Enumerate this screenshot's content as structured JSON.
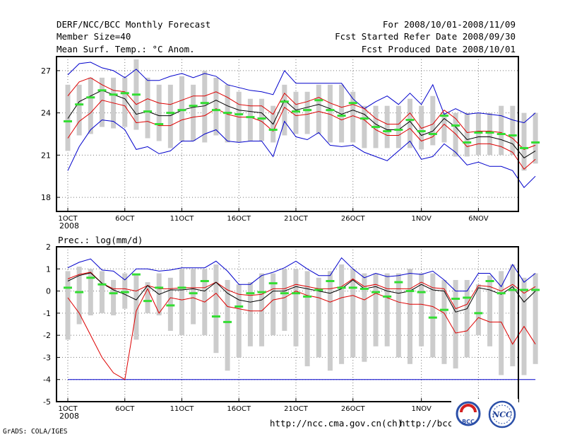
{
  "header": {
    "title": "DERF/NCC/BCC Monthly Forecast",
    "member_size": "Member Size=40",
    "period": "For 2008/10/01-2008/11/09",
    "start_date": "Fcst Started Refer Date 2008/09/30",
    "produced_date": "Fcst Produced Date 2008/10/01"
  },
  "footer": {
    "grads": "GrADS: COLA/IGES",
    "url1": "http://ncc.cma.gov.cn(ch)",
    "url2": "http://bcc.",
    "logo_left_text": "BCC",
    "logo_right_text": "NCC"
  },
  "colors": {
    "box": "#cccccc",
    "member_median": "#33dd33",
    "mean": "#000000",
    "inner": "#dd0000",
    "outer": "#0000cc"
  },
  "chart_data": [
    {
      "type": "box-range",
      "title": "Mean Surf. Temp.: °C Anom.",
      "ylim": [
        17,
        28
      ],
      "yticks": [
        18,
        21,
        24,
        27
      ],
      "xlim": [
        1,
        41
      ],
      "xticks": [
        {
          "x": 1,
          "label": "1OCT"
        },
        {
          "x": 6,
          "label": "6OCT"
        },
        {
          "x": 11,
          "label": "11OCT"
        },
        {
          "x": 16,
          "label": "16OCT"
        },
        {
          "x": 21,
          "label": "21OCT"
        },
        {
          "x": 26,
          "label": "26OCT"
        },
        {
          "x": 32,
          "label": "1NOV"
        },
        {
          "x": 37,
          "label": "6NOV"
        }
      ],
      "year_label": "2008",
      "grid": true,
      "series": [
        {
          "name": "mean",
          "values": [
            23.6,
            24.8,
            25.2,
            25.6,
            25.3,
            25.0,
            23.9,
            24.1,
            23.8,
            23.8,
            24.2,
            24.4,
            24.5,
            24.9,
            24.5,
            24.2,
            24.1,
            24.0,
            23.2,
            24.9,
            24.2,
            24.4,
            24.6,
            24.3,
            23.9,
            24.2,
            23.9,
            23.2,
            22.8,
            22.8,
            23.4,
            22.4,
            22.7,
            23.6,
            23.0,
            22.1,
            22.3,
            22.3,
            22.1,
            21.8,
            20.8,
            21.3
          ]
        },
        {
          "name": "inner-upper",
          "values": [
            25.2,
            26.2,
            26.5,
            26.0,
            25.6,
            25.5,
            24.6,
            25.0,
            24.7,
            24.6,
            24.9,
            25.2,
            25.2,
            25.5,
            25.1,
            24.6,
            24.5,
            24.5,
            23.9,
            25.4,
            24.6,
            24.8,
            25.1,
            24.7,
            24.4,
            24.6,
            24.3,
            23.6,
            23.2,
            23.2,
            24.0,
            22.9,
            23.2,
            24.2,
            23.6,
            22.6,
            22.7,
            22.7,
            22.6,
            22.2,
            21.4,
            21.7
          ]
        },
        {
          "name": "inner-lower",
          "values": [
            22.2,
            23.4,
            24.0,
            24.9,
            24.7,
            24.5,
            23.3,
            23.4,
            23.1,
            23.1,
            23.5,
            23.7,
            23.8,
            24.3,
            23.9,
            23.7,
            23.7,
            23.4,
            22.7,
            24.4,
            23.8,
            23.9,
            24.1,
            23.9,
            23.5,
            23.8,
            23.5,
            22.8,
            22.4,
            22.4,
            22.9,
            22.0,
            22.3,
            23.2,
            22.5,
            21.6,
            21.8,
            21.8,
            21.6,
            21.2,
            20.0,
            20.7
          ]
        },
        {
          "name": "outer-upper",
          "values": [
            26.7,
            27.5,
            27.6,
            27.2,
            27.0,
            26.5,
            27.1,
            26.3,
            26.3,
            26.6,
            26.8,
            26.5,
            26.8,
            26.6,
            26.0,
            25.8,
            25.6,
            25.5,
            25.3,
            27.0,
            26.1,
            26.1,
            26.1,
            26.1,
            26.1,
            25.0,
            24.3,
            24.8,
            25.2,
            24.6,
            25.4,
            24.6,
            26.0,
            23.9,
            24.3,
            23.9,
            24.0,
            23.9,
            23.8,
            23.5,
            23.3,
            24.0
          ]
        },
        {
          "name": "outer-lower",
          "values": [
            19.9,
            21.6,
            22.8,
            23.5,
            23.4,
            22.8,
            21.4,
            21.6,
            21.1,
            21.3,
            22.0,
            22.0,
            22.5,
            22.8,
            22.0,
            21.9,
            22.0,
            22.0,
            20.9,
            23.4,
            22.3,
            22.1,
            22.6,
            21.7,
            21.6,
            21.7,
            21.2,
            20.9,
            20.6,
            21.3,
            22.0,
            20.7,
            20.9,
            21.8,
            21.2,
            20.3,
            20.5,
            20.2,
            20.2,
            19.9,
            18.7,
            19.5
          ]
        },
        {
          "name": "member-median",
          "values": [
            23.4,
            24.6,
            25.1,
            25.6,
            25.3,
            25.4,
            25.3,
            24.1,
            23.2,
            24.0,
            24.2,
            24.5,
            24.7,
            24.2,
            24.0,
            23.9,
            23.7,
            23.6,
            22.8,
            24.8,
            24.1,
            24.2,
            24.9,
            24.2,
            23.8,
            24.7,
            23.6,
            23.0,
            22.7,
            22.8,
            23.5,
            22.7,
            22.5,
            23.8,
            23.1,
            21.9,
            22.6,
            22.6,
            22.5,
            22.4,
            21.5,
            21.9
          ]
        },
        {
          "name": "box-high",
          "values": [
            26.0,
            26.0,
            26.5,
            26.5,
            26.5,
            26.5,
            27.8,
            26.5,
            26.0,
            26.0,
            26.6,
            26.0,
            27.0,
            26.5,
            26.0,
            25.5,
            25.0,
            25.0,
            24.5,
            26.0,
            25.5,
            25.5,
            26.0,
            26.0,
            26.0,
            25.5,
            24.5,
            24.5,
            24.5,
            24.5,
            25.0,
            24.5,
            25.2,
            24.0,
            24.0,
            24.0,
            24.0,
            24.0,
            24.5,
            24.5,
            24.0,
            24.0
          ]
        },
        {
          "name": "box-low",
          "values": [
            21.3,
            22.4,
            22.5,
            23.0,
            22.9,
            23.0,
            22.8,
            22.2,
            22.0,
            21.5,
            22.0,
            22.0,
            21.9,
            22.4,
            21.9,
            21.9,
            22.0,
            22.0,
            21.9,
            22.4,
            22.5,
            22.5,
            22.5,
            21.9,
            21.9,
            21.9,
            21.5,
            21.5,
            21.5,
            21.5,
            21.5,
            21.4,
            21.7,
            21.9,
            20.9,
            20.9,
            21.0,
            21.0,
            21.0,
            21.0,
            19.9,
            20.4
          ]
        }
      ]
    },
    {
      "type": "box-range",
      "title": "Prec.: log(mm/d)",
      "ylim": [
        -5,
        2
      ],
      "yticks": [
        -5,
        -4,
        -3,
        -2,
        -1,
        0,
        1,
        2
      ],
      "xlim": [
        1,
        41
      ],
      "xticks": [
        {
          "x": 1,
          "label": "1OCT"
        },
        {
          "x": 6,
          "label": "6OCT"
        },
        {
          "x": 11,
          "label": "11OCT"
        },
        {
          "x": 16,
          "label": "16OCT"
        },
        {
          "x": 21,
          "label": "21OCT"
        },
        {
          "x": 26,
          "label": "26OCT"
        },
        {
          "x": 32,
          "label": "1NOV"
        },
        {
          "x": 37,
          "label": "6NOV"
        }
      ],
      "year_label": "2008",
      "grid": true,
      "series": [
        {
          "name": "mean",
          "values": [
            0.45,
            0.7,
            0.82,
            0.35,
            0.05,
            -0.15,
            -0.4,
            0.25,
            -0.15,
            0.05,
            0.05,
            0.1,
            0.0,
            0.4,
            -0.1,
            -0.4,
            -0.5,
            -0.4,
            0.0,
            0.0,
            0.2,
            0.1,
            0.0,
            -0.1,
            0.1,
            0.5,
            0.1,
            0.2,
            0.0,
            -0.1,
            0.0,
            0.3,
            0.05,
            0.0,
            -0.95,
            -0.8,
            0.15,
            0.05,
            -0.15,
            0.2,
            -0.5,
            0.0
          ]
        },
        {
          "name": "inner-upper",
          "values": [
            0.55,
            0.75,
            0.85,
            0.35,
            0.1,
            0.1,
            0.0,
            0.25,
            0.1,
            0.1,
            0.15,
            0.15,
            0.15,
            0.4,
            0.05,
            -0.15,
            -0.2,
            -0.15,
            0.1,
            0.1,
            0.3,
            0.2,
            0.1,
            0.1,
            0.2,
            0.55,
            0.2,
            0.3,
            0.1,
            0.1,
            0.1,
            0.4,
            0.15,
            0.1,
            -0.8,
            -0.6,
            0.25,
            0.2,
            0.0,
            0.3,
            -0.1,
            0.2
          ]
        },
        {
          "name": "inner-lower",
          "values": [
            -0.3,
            -1.0,
            -2.0,
            -3.0,
            -3.7,
            -4.0,
            -0.9,
            0.1,
            -1.0,
            -0.3,
            -0.4,
            -0.3,
            -0.5,
            -0.1,
            -0.7,
            -0.8,
            -0.9,
            -0.9,
            -0.4,
            -0.3,
            0.0,
            -0.2,
            -0.3,
            -0.5,
            -0.3,
            -0.2,
            -0.4,
            -0.1,
            -0.3,
            -0.5,
            -0.6,
            -0.6,
            -0.7,
            -1.0,
            -1.9,
            -1.8,
            -1.2,
            -1.4,
            -1.4,
            -2.4,
            -1.6,
            -2.4
          ]
        },
        {
          "name": "outer-upper",
          "values": [
            1.05,
            1.3,
            1.45,
            0.95,
            0.9,
            0.5,
            1.0,
            1.0,
            0.9,
            0.95,
            1.05,
            1.05,
            1.05,
            1.35,
            0.9,
            0.3,
            0.3,
            0.7,
            0.85,
            1.05,
            1.35,
            1.0,
            0.7,
            0.7,
            1.5,
            1.0,
            0.6,
            0.8,
            0.65,
            0.7,
            0.8,
            0.75,
            0.9,
            0.5,
            0.0,
            0.0,
            0.8,
            0.8,
            0.2,
            1.2,
            0.4,
            0.8
          ]
        },
        {
          "name": "outer-lower",
          "values": [
            -4.0,
            -4.0,
            -4.0,
            -4.0,
            -4.0,
            -4.0,
            -4.0,
            -4.0,
            -4.0,
            -4.0,
            -4.0,
            -4.0,
            -4.0,
            -4.0,
            -4.0,
            -4.0,
            -4.0,
            -4.0,
            -4.0,
            -4.0,
            -4.0,
            -4.0,
            -4.0,
            -4.0,
            -4.0,
            -4.0,
            -4.0,
            -4.0,
            -4.0,
            -4.0,
            -4.0,
            -4.0,
            -4.0,
            -4.0,
            -4.0,
            -4.0,
            -4.0,
            -4.0,
            -4.0,
            -4.0,
            -4.0,
            -4.0
          ]
        },
        {
          "name": "member-median",
          "values": [
            0.15,
            -0.05,
            0.6,
            0.3,
            -0.1,
            -0.05,
            0.75,
            -0.45,
            0.15,
            -0.65,
            0.15,
            -0.1,
            0.45,
            -1.15,
            -1.4,
            -0.7,
            -0.1,
            -0.05,
            0.35,
            -0.1,
            -0.1,
            -0.25,
            0.05,
            0.45,
            0.15,
            0.15,
            0.1,
            -0.05,
            -0.25,
            0.4,
            0.0,
            -0.05,
            -1.2,
            -0.85,
            -0.35,
            -0.3,
            -1.0,
            0.45,
            -0.1,
            0.05,
            0.05,
            0.05
          ]
        },
        {
          "name": "box-high",
          "values": [
            0.9,
            1.1,
            1.0,
            0.9,
            0.5,
            0.8,
            0.7,
            0.4,
            0.8,
            0.6,
            1.0,
            1.0,
            1.0,
            1.2,
            0.5,
            0.3,
            0.4,
            0.8,
            0.8,
            1.0,
            1.0,
            0.9,
            0.6,
            0.9,
            1.2,
            1.0,
            0.8,
            0.8,
            0.8,
            0.8,
            1.0,
            0.8,
            0.8,
            0.5,
            0.5,
            0.5,
            0.3,
            0.7,
            0.9,
            1.2,
            0.6,
            0.8
          ]
        },
        {
          "name": "box-low",
          "values": [
            -2.2,
            -1.5,
            -1.1,
            -1.0,
            -1.1,
            -0.8,
            -2.2,
            -1.0,
            -1.1,
            -1.8,
            -2.0,
            -1.5,
            -2.0,
            -2.8,
            -3.6,
            -3.0,
            -2.5,
            -2.5,
            -2.0,
            -1.8,
            -2.5,
            -3.4,
            -3.0,
            -3.6,
            -3.3,
            -3.0,
            -3.2,
            -2.5,
            -2.5,
            -3.0,
            -3.3,
            -2.5,
            -3.0,
            -3.3,
            -3.5,
            -3.0,
            -2.0,
            -2.5,
            -3.8,
            -3.4,
            -3.8,
            -3.3
          ]
        }
      ]
    }
  ]
}
